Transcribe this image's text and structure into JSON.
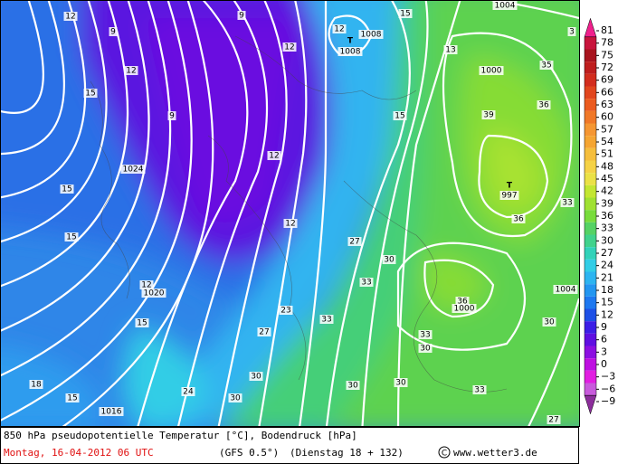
{
  "map": {
    "labels": [
      "12",
      "9",
      "9",
      "12",
      "12",
      "T",
      "1008",
      "1008",
      "15",
      "1004",
      "3",
      "13",
      "1000",
      "35",
      "36",
      "39",
      "12",
      "15",
      "9",
      "15",
      "1024",
      "15",
      "12",
      "T",
      "997",
      "36",
      "33",
      "12",
      "15",
      "27",
      "30",
      "33",
      "12",
      "1020",
      "1004",
      "36",
      "1000",
      "15",
      "23",
      "33",
      "27",
      "33",
      "30",
      "30",
      "18",
      "24",
      "30",
      "30",
      "30",
      "33",
      "15",
      "1016",
      "30",
      "27"
    ]
  },
  "colorbar": {
    "labels": [
      "81",
      "78",
      "75",
      "72",
      "69",
      "66",
      "63",
      "60",
      "57",
      "54",
      "51",
      "48",
      "45",
      "42",
      "39",
      "36",
      "33",
      "30",
      "27",
      "24",
      "21",
      "18",
      "15",
      "12",
      "9",
      "6",
      "3",
      "0",
      "−3",
      "−6",
      "−9"
    ],
    "colors": [
      "#f0208c",
      "#c8143c",
      "#a8141e",
      "#be1e1e",
      "#d22d1e",
      "#e1461e",
      "#eb5a1e",
      "#f07828",
      "#f59632",
      "#f5a532",
      "#f5be3c",
      "#f5d246",
      "#ebe146",
      "#c3e632",
      "#a0e132",
      "#78dc3c",
      "#55d264",
      "#41d28c",
      "#32d2b9",
      "#32cde6",
      "#2db4f0",
      "#2396f0",
      "#1e78f0",
      "#1e50e6",
      "#3c1ee6",
      "#5f0fe1",
      "#8c0fe1",
      "#be0fe1",
      "#e11ee1",
      "#c85adc",
      "#8c2d9b"
    ]
  },
  "caption": {
    "line1": "850 hPa pseudopotentielle Temperatur [°C], Bodendruck [hPa]",
    "date": "Montag, 16-04-2012  06 UTC",
    "model": "(GFS 0.5°)",
    "run": "(Dienstag 18 + 132)",
    "site": "www.wetter3.de"
  }
}
